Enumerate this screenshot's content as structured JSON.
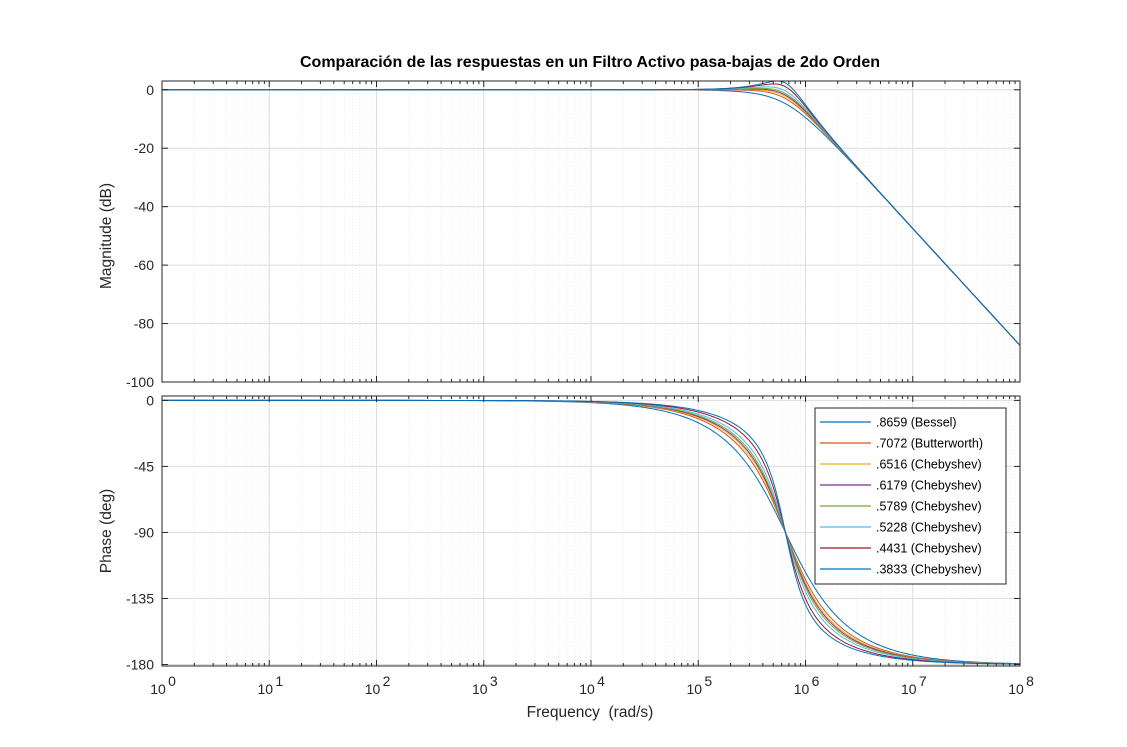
{
  "title": "Comparación de las respuestas en un Filtro Activo pasa-bajas de 2do Orden",
  "colors": {
    "grid_major": "#dcdcdc",
    "grid_minor": "#e8e8e8",
    "axis": "#262626",
    "series": [
      "#0072BD",
      "#D95319",
      "#EDB120",
      "#7E2F8E",
      "#77AC30",
      "#4DBEEE",
      "#A2142F",
      "#0072BD"
    ]
  },
  "chart_data": [
    {
      "type": "line",
      "name": "magnitude",
      "xscale": "log",
      "ylabel": "Magnitude (dB)",
      "xlim": [
        1,
        100000000
      ],
      "ylim": [
        -100,
        3
      ],
      "yticks": [
        0,
        -20,
        -40,
        -60,
        -80,
        -100
      ],
      "ytick_labels": [
        "0",
        "-20",
        "-40",
        "-60",
        "-80",
        "-100"
      ],
      "grid": true,
      "natural_frequency_rad_s": 650000,
      "series_zeta": [
        0.8659,
        0.7072,
        0.6516,
        0.6179,
        0.5789,
        0.5228,
        0.4431,
        0.3833
      ]
    },
    {
      "type": "line",
      "name": "phase",
      "xscale": "log",
      "xlabel": "Frequency  (rad/s)",
      "ylabel": "Phase (deg)",
      "xlim": [
        1,
        100000000
      ],
      "ylim": [
        -181,
        3
      ],
      "yticks": [
        0,
        -45,
        -90,
        -135,
        -180
      ],
      "ytick_labels": [
        "0",
        "-45",
        "-90",
        "-135",
        "-180"
      ],
      "xtick_exponents": [
        "0",
        "1",
        "2",
        "3",
        "4",
        "5",
        "6",
        "7",
        "8"
      ],
      "grid": true,
      "legend_position": "top-right",
      "legend": [
        ".8659 (Bessel)",
        ".7072 (Butterworth)",
        ".6516 (Chebyshev)",
        ".6179 (Chebyshev)",
        ".5789 (Chebyshev)",
        ".5228 (Chebyshev)",
        ".4431 (Chebyshev)",
        ".3833 (Chebyshev)"
      ]
    }
  ]
}
